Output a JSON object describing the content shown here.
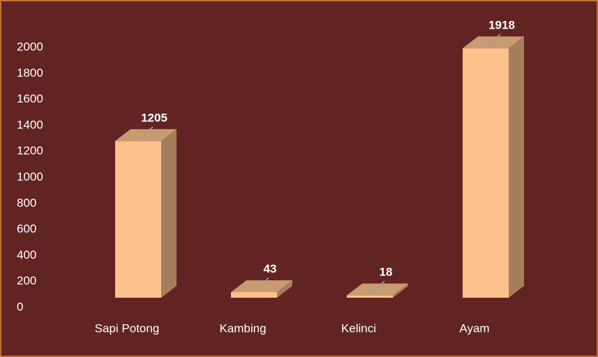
{
  "chart_data": {
    "type": "bar3d",
    "categories": [
      "Sapi Potong",
      "Kambing",
      "Kelinci",
      "Ayam"
    ],
    "values": [
      1205,
      43,
      18,
      1918
    ],
    "color": "#fcc08c",
    "ylim": [
      0,
      2000
    ],
    "yticks": [
      0,
      200,
      400,
      600,
      800,
      1000,
      1200,
      1400,
      1600,
      1800,
      2000
    ],
    "grid": false
  }
}
